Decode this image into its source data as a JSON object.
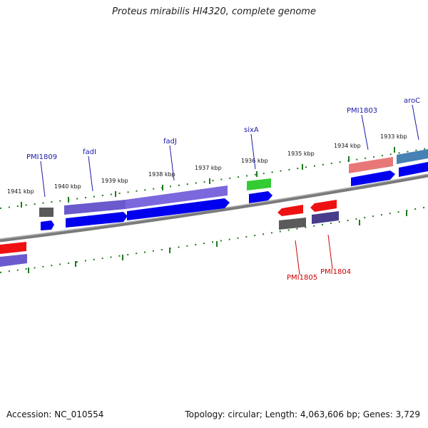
{
  "title": "Proteus mirabilis HI4320, complete genome",
  "accession": "Accession: NC_010554",
  "topology": "Topology: circular; Length: 4,063,606 bp; Genes: 3,729",
  "colors": {
    "backbone": "#808080",
    "tick": "#1e7a1e",
    "forward_label": "#1a1aa8",
    "reverse_label": "#cc0000"
  },
  "kbp_labels": [
    "1941 kbp",
    "1940 kbp",
    "1939 kbp",
    "1938 kbp",
    "1937 kbp",
    "1936 kbp",
    "1935 kbp",
    "1934 kbp",
    "1933 kbp"
  ],
  "forward_genes": [
    "PMI1809",
    "fadI",
    "fadJ",
    "sixA",
    "PMI1803",
    "aroC"
  ],
  "reverse_genes": [
    "PMI1805",
    "PMI1804"
  ]
}
